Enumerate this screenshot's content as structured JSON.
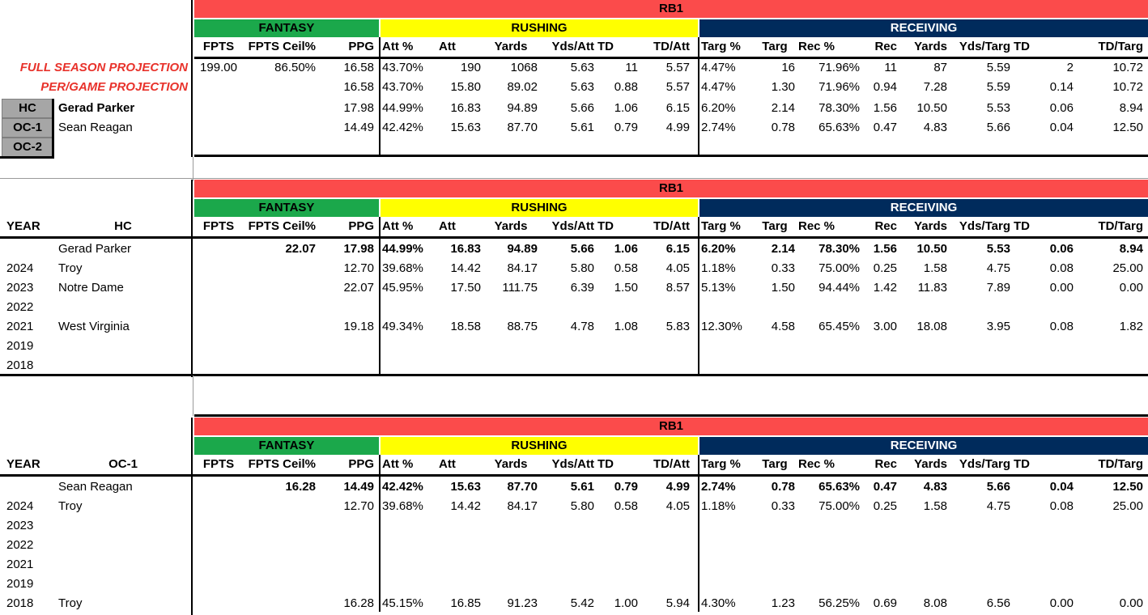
{
  "colors": {
    "rb_band": "#fb4b4b",
    "fantasy": "#1ba84b",
    "rushing": "#ffff00",
    "receiving": "#002b5c",
    "role_box": "#a6a6a6",
    "proj_red": "#e8322b"
  },
  "headers": {
    "rb": "RB1",
    "fantasy": "FANTASY",
    "rushing": "RUSHING",
    "receiving": "RECEIVING",
    "cols": [
      "FPTS",
      "FPTS Ceil%",
      "PPG",
      "Att %",
      "Att",
      "Yards",
      "Yds/Att",
      "TD",
      "TD/Att",
      "Targ %",
      "Targ",
      "Rec %",
      "Rec",
      "Yards",
      "Yds/Targ",
      "TD",
      "TD/Targ"
    ],
    "year": "YEAR",
    "hc": "HC",
    "oc1": "OC-1"
  },
  "summary": {
    "full_label": "FULL SEASON PROJECTION",
    "pg_label": "PER/GAME PROJECTION",
    "roles": [
      "HC",
      "OC-1",
      "OC-2"
    ],
    "full": [
      "199.00",
      "86.50%",
      "16.58",
      "43.70%",
      "190",
      "1068",
      "5.63",
      "11",
      "5.57",
      "4.47%",
      "16",
      "71.96%",
      "11",
      "87",
      "5.59",
      "2",
      "10.72"
    ],
    "pergame": [
      "",
      "",
      "16.58",
      "43.70%",
      "15.80",
      "89.02",
      "5.63",
      "0.88",
      "5.57",
      "4.47%",
      "1.30",
      "71.96%",
      "0.94",
      "7.28",
      "5.59",
      "0.14",
      "10.72"
    ],
    "hc_name": "Gerad Parker",
    "hc_row": [
      "",
      "",
      "17.98",
      "44.99%",
      "16.83",
      "94.89",
      "5.66",
      "1.06",
      "6.15",
      "6.20%",
      "2.14",
      "78.30%",
      "1.56",
      "10.50",
      "5.53",
      "0.06",
      "8.94"
    ],
    "oc1_name": "Sean Reagan",
    "oc1_row": [
      "",
      "",
      "14.49",
      "42.42%",
      "15.63",
      "87.70",
      "5.61",
      "0.79",
      "4.99",
      "2.74%",
      "0.78",
      "65.63%",
      "0.47",
      "4.83",
      "5.66",
      "0.04",
      "12.50"
    ]
  },
  "hc_section": {
    "name": "Gerad Parker",
    "total": [
      "",
      "22.07",
      "17.98",
      "44.99%",
      "16.83",
      "94.89",
      "5.66",
      "1.06",
      "6.15",
      "6.20%",
      "2.14",
      "78.30%",
      "1.56",
      "10.50",
      "5.53",
      "0.06",
      "8.94"
    ],
    "rows": [
      {
        "year": "2024",
        "team": "Troy",
        "vals": [
          "",
          "",
          "12.70",
          "39.68%",
          "14.42",
          "84.17",
          "5.80",
          "0.58",
          "4.05",
          "1.18%",
          "0.33",
          "75.00%",
          "0.25",
          "1.58",
          "4.75",
          "0.08",
          "25.00"
        ]
      },
      {
        "year": "2023",
        "team": "Notre Dame",
        "vals": [
          "",
          "",
          "22.07",
          "45.95%",
          "17.50",
          "111.75",
          "6.39",
          "1.50",
          "8.57",
          "5.13%",
          "1.50",
          "94.44%",
          "1.42",
          "11.83",
          "7.89",
          "0.00",
          "0.00"
        ]
      },
      {
        "year": "2022",
        "team": "",
        "vals": [
          "",
          "",
          "",
          "",
          "",
          "",
          "",
          "",
          "",
          "",
          "",
          "",
          "",
          "",
          "",
          "",
          ""
        ]
      },
      {
        "year": "2021",
        "team": "West Virginia",
        "vals": [
          "",
          "",
          "19.18",
          "49.34%",
          "18.58",
          "88.75",
          "4.78",
          "1.08",
          "5.83",
          "12.30%",
          "4.58",
          "65.45%",
          "3.00",
          "18.08",
          "3.95",
          "0.08",
          "1.82"
        ]
      },
      {
        "year": "2019",
        "team": "",
        "vals": [
          "",
          "",
          "",
          "",
          "",
          "",
          "",
          "",
          "",
          "",
          "",
          "",
          "",
          "",
          "",
          "",
          ""
        ]
      },
      {
        "year": "2018",
        "team": "",
        "vals": [
          "",
          "",
          "",
          "",
          "",
          "",
          "",
          "",
          "",
          "",
          "",
          "",
          "",
          "",
          "",
          "",
          ""
        ]
      }
    ]
  },
  "oc_section": {
    "name": "Sean Reagan",
    "total": [
      "",
      "16.28",
      "14.49",
      "42.42%",
      "15.63",
      "87.70",
      "5.61",
      "0.79",
      "4.99",
      "2.74%",
      "0.78",
      "65.63%",
      "0.47",
      "4.83",
      "5.66",
      "0.04",
      "12.50"
    ],
    "rows": [
      {
        "year": "2024",
        "team": "Troy",
        "vals": [
          "",
          "",
          "12.70",
          "39.68%",
          "14.42",
          "84.17",
          "5.80",
          "0.58",
          "4.05",
          "1.18%",
          "0.33",
          "75.00%",
          "0.25",
          "1.58",
          "4.75",
          "0.08",
          "25.00"
        ]
      },
      {
        "year": "2023",
        "team": "",
        "vals": [
          "",
          "",
          "",
          "",
          "",
          "",
          "",
          "",
          "",
          "",
          "",
          "",
          "",
          "",
          "",
          "",
          ""
        ]
      },
      {
        "year": "2022",
        "team": "",
        "vals": [
          "",
          "",
          "",
          "",
          "",
          "",
          "",
          "",
          "",
          "",
          "",
          "",
          "",
          "",
          "",
          "",
          ""
        ]
      },
      {
        "year": "2021",
        "team": "",
        "vals": [
          "",
          "",
          "",
          "",
          "",
          "",
          "",
          "",
          "",
          "",
          "",
          "",
          "",
          "",
          "",
          "",
          ""
        ]
      },
      {
        "year": "2019",
        "team": "",
        "vals": [
          "",
          "",
          "",
          "",
          "",
          "",
          "",
          "",
          "",
          "",
          "",
          "",
          "",
          "",
          "",
          "",
          ""
        ]
      },
      {
        "year": "2018",
        "team": "Troy",
        "vals": [
          "",
          "",
          "16.28",
          "45.15%",
          "16.85",
          "91.23",
          "5.42",
          "1.00",
          "5.94",
          "4.30%",
          "1.23",
          "56.25%",
          "0.69",
          "8.08",
          "6.56",
          "0.00",
          "0.00"
        ]
      }
    ]
  }
}
